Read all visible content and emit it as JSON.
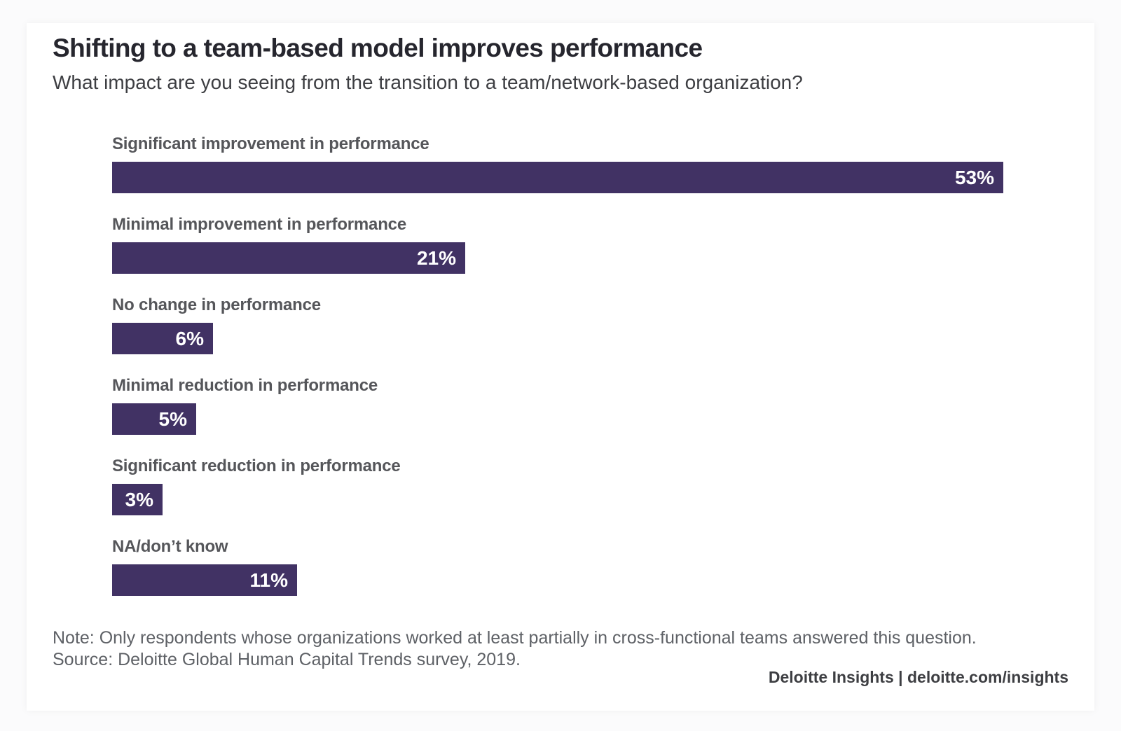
{
  "chart_data": {
    "type": "bar",
    "orientation": "horizontal",
    "title": "Shifting to a team-based model improves performance",
    "subtitle": "What impact are you seeing from the transition to a team/network-based organization?",
    "categories": [
      "Significant improvement in performance",
      "Minimal improvement in performance",
      "No change in performance",
      "Minimal reduction in performance",
      "Significant reduction in performance",
      "NA/don’t know"
    ],
    "values": [
      53,
      21,
      6,
      5,
      3,
      11
    ],
    "value_labels": [
      "53%",
      "21%",
      "6%",
      "5%",
      "3%",
      "11%"
    ],
    "unit": "%",
    "xlim": [
      0,
      55
    ],
    "grid": false,
    "legend": false,
    "bar_color": "#413264",
    "value_label_color": "#ffffff"
  },
  "footer": {
    "note": "Note: Only respondents whose organizations worked at least partially in cross-functional teams answered this question.",
    "source": "Source: Deloitte Global Human Capital Trends survey, 2019.",
    "branding": "Deloitte Insights | deloitte.com/insights"
  }
}
